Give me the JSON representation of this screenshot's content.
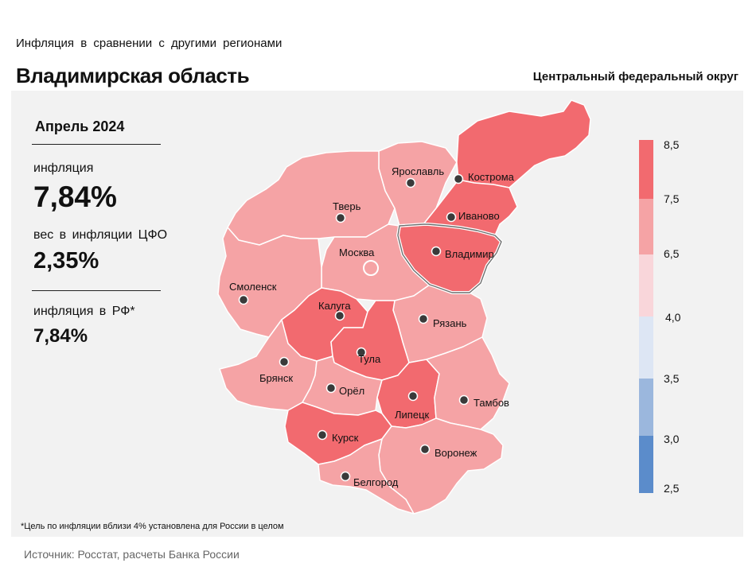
{
  "header": {
    "subtitle": "Инфляция в сравнении с другими регионами",
    "title": "Владимирская область",
    "district": "Центральный федеральный округ"
  },
  "stats": {
    "period": "Апрель 2024",
    "inflation_label": "инфляция",
    "inflation_value": "7,84%",
    "weight_label": "вес в инфляции ЦФО",
    "weight_value": "2,35%",
    "rf_label": "инфляция в РФ*",
    "rf_value": "7,84%"
  },
  "footnote": "*Цель по инфляции вблизи 4% установлена для России в целом",
  "source": "Источник: Росстат, расчеты Банка России",
  "colors": {
    "dark": "#f26a6f",
    "medium": "#f5a3a5",
    "light": "#f9d6da",
    "pale_blue": "#dde6f4",
    "mid_blue": "#9bb7dd",
    "blue": "#5b8ccb"
  },
  "legend": {
    "bands": [
      {
        "from": 7.5,
        "to": 8.5,
        "color": "#f26a6f"
      },
      {
        "from": 6.5,
        "to": 7.5,
        "color": "#f5a3a5"
      },
      {
        "from": 4.0,
        "to": 6.5,
        "color": "#f9d6da"
      },
      {
        "from": 3.5,
        "to": 4.0,
        "color": "#dde6f4"
      },
      {
        "from": 3.0,
        "to": 3.5,
        "color": "#9bb7dd"
      },
      {
        "from": 2.5,
        "to": 3.0,
        "color": "#5b8ccb"
      }
    ],
    "labels": [
      "8,5",
      "7,5",
      "6,5",
      "4,0",
      "3,5",
      "3,0",
      "2,5"
    ]
  },
  "regions": [
    {
      "name": "Ярославль",
      "category": "medium"
    },
    {
      "name": "Кострома",
      "category": "dark"
    },
    {
      "name": "Тверь",
      "category": "medium"
    },
    {
      "name": "Иваново",
      "category": "dark"
    },
    {
      "name": "Москва",
      "category": "medium"
    },
    {
      "name": "Владимир",
      "category": "dark",
      "highlighted": true
    },
    {
      "name": "Смоленск",
      "category": "medium"
    },
    {
      "name": "Калуга",
      "category": "dark"
    },
    {
      "name": "Рязань",
      "category": "medium"
    },
    {
      "name": "Тула",
      "category": "dark"
    },
    {
      "name": "Брянск",
      "category": "medium"
    },
    {
      "name": "Орёл",
      "category": "medium"
    },
    {
      "name": "Липецк",
      "category": "dark"
    },
    {
      "name": "Тамбов",
      "category": "medium"
    },
    {
      "name": "Курск",
      "category": "dark"
    },
    {
      "name": "Воронеж",
      "category": "medium"
    },
    {
      "name": "Белгород",
      "category": "medium"
    }
  ]
}
